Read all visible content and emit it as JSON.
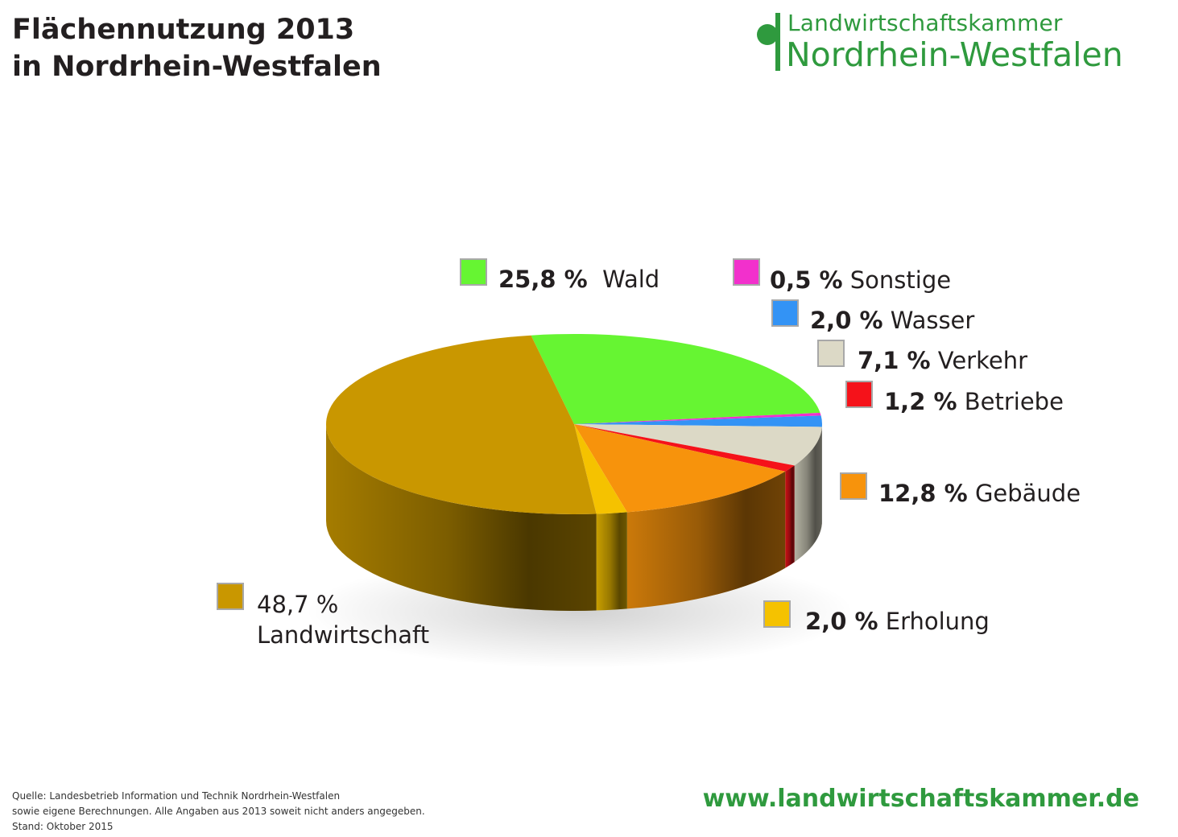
{
  "title": {
    "line1": "Flächennutzung 2013",
    "line2": "in Nordrhein-Westfalen"
  },
  "logo": {
    "line1": "Landwirtschaftskammer",
    "line2": "Nordrhein-Westfalen",
    "color": "#2f9a3e"
  },
  "chart_data": {
    "type": "pie",
    "title": "Flächennutzung 2013 in Nordrhein-Westfalen",
    "unit": "%",
    "series": [
      {
        "name": "Wald",
        "value": 25.8,
        "label": "25,8 %",
        "color": "#66f532"
      },
      {
        "name": "Sonstige",
        "value": 0.5,
        "label": "0,5 %",
        "color": "#f230cc"
      },
      {
        "name": "Wasser",
        "value": 2.0,
        "label": "2,0 %",
        "color": "#3393f5"
      },
      {
        "name": "Verkehr",
        "value": 7.1,
        "label": "7,1 %",
        "color": "#dcd9c6"
      },
      {
        "name": "Betriebe",
        "value": 1.2,
        "label": "1,2 %",
        "color": "#f5121a"
      },
      {
        "name": "Gebäude",
        "value": 12.8,
        "label": "12,8 %",
        "color": "#f7930c"
      },
      {
        "name": "Erholung",
        "value": 2.0,
        "label": "2,0 %",
        "color": "#f5c200"
      },
      {
        "name": "Landwirtschaft",
        "value": 48.7,
        "label": "48,7 %",
        "color": "#c99700"
      }
    ],
    "style": "3d-pie",
    "legend_placement": "around-chart"
  },
  "footer": {
    "source_line1": "Quelle: Landesbetrieb Information und Technik Nordrhein-Westfalen",
    "source_line2": "sowie eigene Berechnungen. Alle Angaben aus 2013 soweit nicht anders angegeben.",
    "source_line3": "Stand: Oktober 2015",
    "url": "www.landwirtschaftskammer.de"
  }
}
